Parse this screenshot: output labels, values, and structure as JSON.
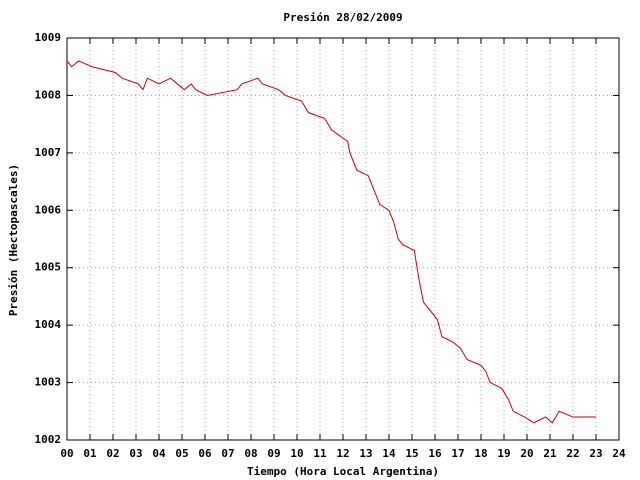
{
  "chart_data": {
    "type": "line",
    "title": "Presión 28/02/2009",
    "xlabel": "Tiempo (Hora Local Argentina)",
    "ylabel": "Presión (Hectopascales)",
    "xlim": [
      0,
      24
    ],
    "ylim": [
      1002,
      1009
    ],
    "xticks": [
      {
        "value": 0,
        "label": "00"
      },
      {
        "value": 1,
        "label": "01"
      },
      {
        "value": 2,
        "label": "02"
      },
      {
        "value": 3,
        "label": "03"
      },
      {
        "value": 4,
        "label": "04"
      },
      {
        "value": 5,
        "label": "05"
      },
      {
        "value": 6,
        "label": "06"
      },
      {
        "value": 7,
        "label": "07"
      },
      {
        "value": 8,
        "label": "08"
      },
      {
        "value": 9,
        "label": "09"
      },
      10,
      11,
      12,
      13,
      14,
      15,
      16,
      17,
      18,
      19,
      20,
      21,
      22,
      23,
      24
    ],
    "yticks": [
      1002,
      1003,
      1004,
      1005,
      1006,
      1007,
      1008,
      1009
    ],
    "grid": true,
    "series": [
      {
        "color": "#cc0000",
        "x": [
          0,
          0.2,
          0.5,
          1.1,
          2.1,
          2.4,
          3.1,
          3.3,
          3.5,
          4.0,
          4.5,
          5.1,
          5.4,
          5.6,
          6.1,
          7.4,
          7.6,
          8.3,
          8.5,
          9.2,
          9.5,
          10.2,
          10.5,
          11.2,
          11.5,
          12.2,
          12.3,
          12.6,
          13.1,
          13.3,
          13.6,
          14.0,
          14.2,
          14.4,
          14.6,
          15.1,
          15.3,
          15.5,
          16.1,
          16.3,
          16.8,
          17.1,
          17.4,
          18.0,
          18.2,
          18.4,
          18.9,
          19.2,
          19.4,
          19.9,
          20.3,
          20.8,
          21.1,
          21.4,
          22.0,
          23.0
        ],
        "values": [
          1008.6,
          1008.5,
          1008.6,
          1008.5,
          1008.4,
          1008.3,
          1008.2,
          1008.1,
          1008.3,
          1008.2,
          1008.3,
          1008.1,
          1008.2,
          1008.1,
          1008.0,
          1008.1,
          1008.2,
          1008.3,
          1008.2,
          1008.1,
          1008.0,
          1007.9,
          1007.7,
          1007.6,
          1007.4,
          1007.2,
          1007.0,
          1006.7,
          1006.6,
          1006.4,
          1006.1,
          1006.0,
          1005.8,
          1005.5,
          1005.4,
          1005.3,
          1004.8,
          1004.4,
          1004.1,
          1003.8,
          1003.7,
          1003.6,
          1003.4,
          1003.3,
          1003.2,
          1003.0,
          1002.9,
          1002.7,
          1002.5,
          1002.4,
          1002.3,
          1002.4,
          1002.3,
          1002.5,
          1002.4,
          1002.4
        ]
      }
    ]
  }
}
